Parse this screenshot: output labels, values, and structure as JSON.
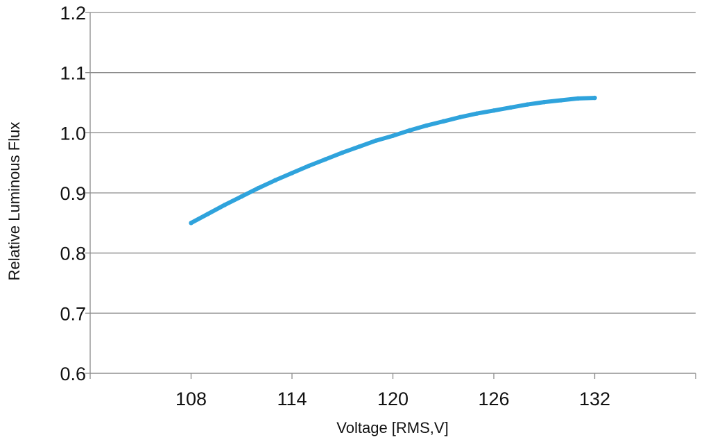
{
  "chart_data": {
    "type": "line",
    "title": "",
    "xlabel": "Voltage [RMS,V]",
    "ylabel": "Relative Luminous Flux",
    "xlim": [
      102,
      138
    ],
    "ylim": [
      0.6,
      1.2
    ],
    "x_ticks": [
      108,
      114,
      120,
      126,
      132
    ],
    "x_tick_labels": [
      "108",
      "114",
      "120",
      "126",
      "132"
    ],
    "y_ticks": [
      0.6,
      0.7,
      0.8,
      0.9,
      1.0,
      1.1,
      1.2
    ],
    "y_tick_labels": [
      "0.6",
      "0.7",
      "0.8",
      "0.9",
      "1.0",
      "1.1",
      "1.2"
    ],
    "grid": "horizontal",
    "legend": "none",
    "series": [
      {
        "color": "#2fa3dc",
        "x": [
          108,
          109,
          110,
          111,
          112,
          113,
          114,
          115,
          116,
          117,
          118,
          119,
          120,
          121,
          122,
          123,
          124,
          125,
          126,
          127,
          128,
          129,
          130,
          131,
          132
        ],
        "y": [
          0.85,
          0.865,
          0.88,
          0.894,
          0.908,
          0.921,
          0.933,
          0.945,
          0.956,
          0.967,
          0.977,
          0.987,
          0.995,
          1.004,
          1.012,
          1.019,
          1.026,
          1.032,
          1.037,
          1.042,
          1.047,
          1.051,
          1.054,
          1.057,
          1.058
        ]
      }
    ]
  }
}
